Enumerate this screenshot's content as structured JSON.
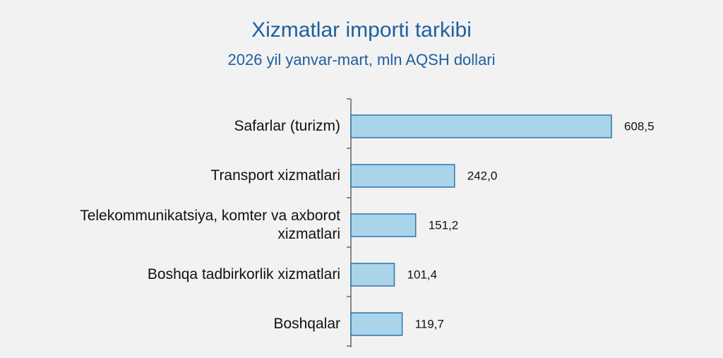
{
  "chart_data": {
    "type": "bar",
    "orientation": "horizontal",
    "title": "Xizmatlar importi tarkibi",
    "subtitle": "2026 yil yanvar-mart, mln AQSH dollari",
    "categories": [
      "Safarlar (turizm)",
      "Transport xizmatlari",
      "Telekommunikatsiya, komter va axborot xizmatlari",
      "Boshqa tadbirkorlik xizmatlari",
      "Boshqalar"
    ],
    "values": [
      608.5,
      242.0,
      151.2,
      101.4,
      119.7
    ],
    "value_labels": [
      "608,5",
      "242,0",
      "151,2",
      "101,4",
      "119,7"
    ],
    "color": "#a9d4ea"
  }
}
